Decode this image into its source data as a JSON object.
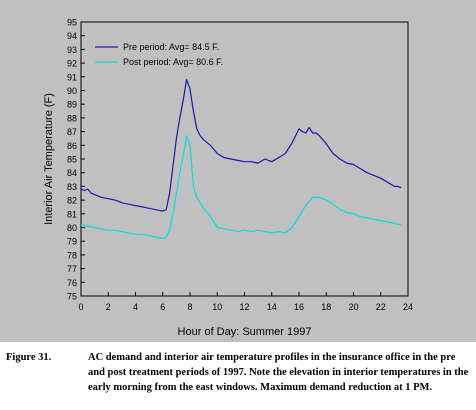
{
  "chart_data": {
    "type": "line",
    "xlabel": "Hour of Day: Summer 1997",
    "ylabel": "Interior Air Temperature (F)",
    "xlim": [
      0,
      24
    ],
    "ylim": [
      75,
      95
    ],
    "xticks": [
      0,
      2,
      4,
      6,
      8,
      10,
      12,
      14,
      16,
      18,
      20,
      22,
      24
    ],
    "yticks": [
      75,
      76,
      77,
      78,
      79,
      80,
      81,
      82,
      83,
      84,
      85,
      86,
      87,
      88,
      89,
      90,
      91,
      92,
      93,
      94,
      95
    ],
    "grid": false,
    "legend": "top-left",
    "series": [
      {
        "name": "Pre period: Avg= 84.5 F.",
        "color": "#1a1aa6",
        "x": [
          0,
          0.25,
          0.5,
          0.75,
          1,
          1.5,
          2,
          2.5,
          3,
          3.5,
          4,
          4.5,
          5,
          5.5,
          6,
          6.25,
          6.5,
          6.75,
          7,
          7.25,
          7.5,
          7.75,
          8,
          8.25,
          8.5,
          8.75,
          9,
          9.5,
          10,
          10.5,
          11,
          11.5,
          12,
          12.5,
          13,
          13.5,
          14,
          14.5,
          15,
          15.5,
          16,
          16.25,
          16.5,
          16.75,
          17,
          17.25,
          17.5,
          18,
          18.5,
          19,
          19.5,
          20,
          20.5,
          21,
          21.5,
          22,
          22.5,
          23,
          23.25,
          23.5
        ],
        "values": [
          82.8,
          82.7,
          82.8,
          82.5,
          82.4,
          82.2,
          82.1,
          82.0,
          81.8,
          81.7,
          81.6,
          81.5,
          81.4,
          81.3,
          81.2,
          81.3,
          82.5,
          84.5,
          86.5,
          88.0,
          89.3,
          90.8,
          90.1,
          88.5,
          87.2,
          86.7,
          86.4,
          86.0,
          85.4,
          85.1,
          85.0,
          84.9,
          84.8,
          84.8,
          84.7,
          85.0,
          84.8,
          85.1,
          85.4,
          86.2,
          87.2,
          87.0,
          86.9,
          87.3,
          86.9,
          86.9,
          86.7,
          86.1,
          85.4,
          85.0,
          84.7,
          84.6,
          84.3,
          84.0,
          83.8,
          83.6,
          83.3,
          83.0,
          83.0,
          82.9
        ]
      },
      {
        "name": "Post period: Avg= 80.6 F.",
        "color": "#00e0e0",
        "x": [
          0,
          0.5,
          1,
          1.5,
          2,
          2.5,
          3,
          3.5,
          4,
          4.5,
          5,
          5.5,
          6,
          6.25,
          6.5,
          6.75,
          7,
          7.25,
          7.5,
          7.75,
          8,
          8.25,
          8.5,
          8.75,
          9,
          9.5,
          10,
          10.5,
          11,
          11.5,
          12,
          12.5,
          13,
          13.5,
          14,
          14.5,
          15,
          15.5,
          16,
          16.5,
          17,
          17.5,
          18,
          18.5,
          19,
          19.5,
          20,
          20.5,
          21,
          21.5,
          22,
          22.5,
          23,
          23.5
        ],
        "values": [
          80.2,
          80.1,
          80.0,
          79.9,
          79.8,
          79.8,
          79.7,
          79.6,
          79.5,
          79.5,
          79.4,
          79.3,
          79.2,
          79.3,
          79.8,
          81.0,
          82.5,
          84.0,
          85.2,
          86.7,
          86.0,
          83.0,
          82.2,
          81.8,
          81.4,
          80.8,
          80.0,
          79.9,
          79.8,
          79.7,
          79.8,
          79.7,
          79.8,
          79.7,
          79.6,
          79.7,
          79.6,
          80.0,
          80.8,
          81.6,
          82.2,
          82.2,
          82.0,
          81.7,
          81.3,
          81.1,
          81.0,
          80.8,
          80.7,
          80.6,
          80.5,
          80.4,
          80.3,
          80.2
        ]
      }
    ]
  },
  "caption": {
    "label": "Figure 31.",
    "text": "AC demand and interior air temperature profiles in the insurance office in the pre and post treatment periods of 1997. Note the elevation in interior temperatures in the early morning from the east windows. Maximum demand reduction at 1 PM."
  }
}
